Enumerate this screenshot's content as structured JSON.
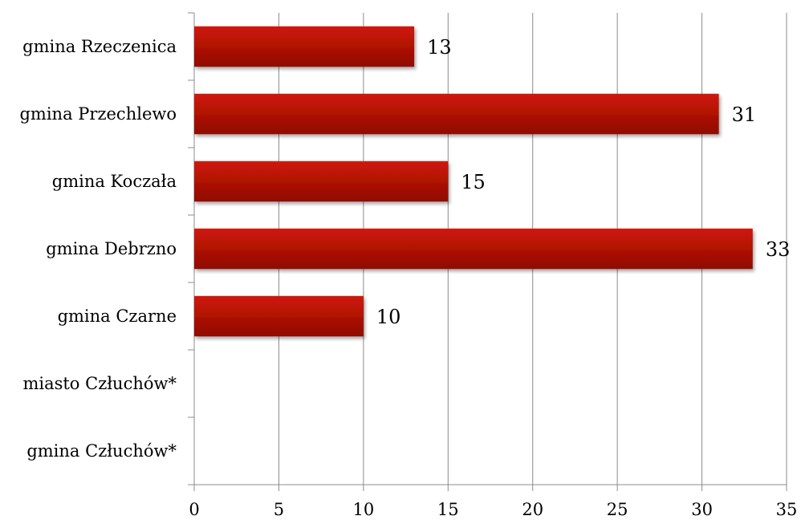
{
  "chart_data": {
    "type": "bar",
    "orientation": "horizontal",
    "categories": [
      "gmina Rzeczenica",
      "gmina Przechlewo",
      "gmina Koczała",
      "gmina Debrzno",
      "gmina Czarne",
      "miasto Człuchów*",
      "gmina Człuchów*"
    ],
    "values": [
      13,
      31,
      15,
      33,
      10,
      null,
      null
    ],
    "data_labels": [
      "13",
      "31",
      "15",
      "33",
      "10",
      "",
      ""
    ],
    "xlim": [
      0,
      35
    ],
    "xticks": [
      0,
      5,
      10,
      15,
      20,
      25,
      30,
      35
    ],
    "tick_labels": [
      "0",
      "5",
      "10",
      "15",
      "20",
      "25",
      "30",
      "35"
    ],
    "title": "",
    "xlabel": "",
    "ylabel": "",
    "grid": "vertical",
    "legend": "none",
    "bar_color_top": "#d01a08",
    "bar_color_bottom": "#8e0a03",
    "grid_color": "#8c8c8c"
  }
}
